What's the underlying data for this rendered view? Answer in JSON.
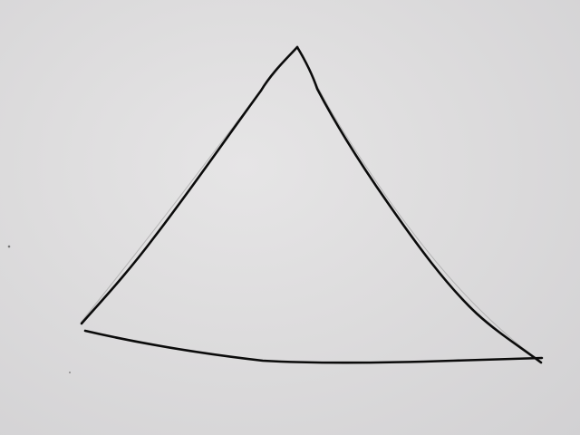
{
  "scene": {
    "subject": "hand-drawn-triangle",
    "paper_color": "#dedddf",
    "ink_color": "#0b0b0b"
  }
}
